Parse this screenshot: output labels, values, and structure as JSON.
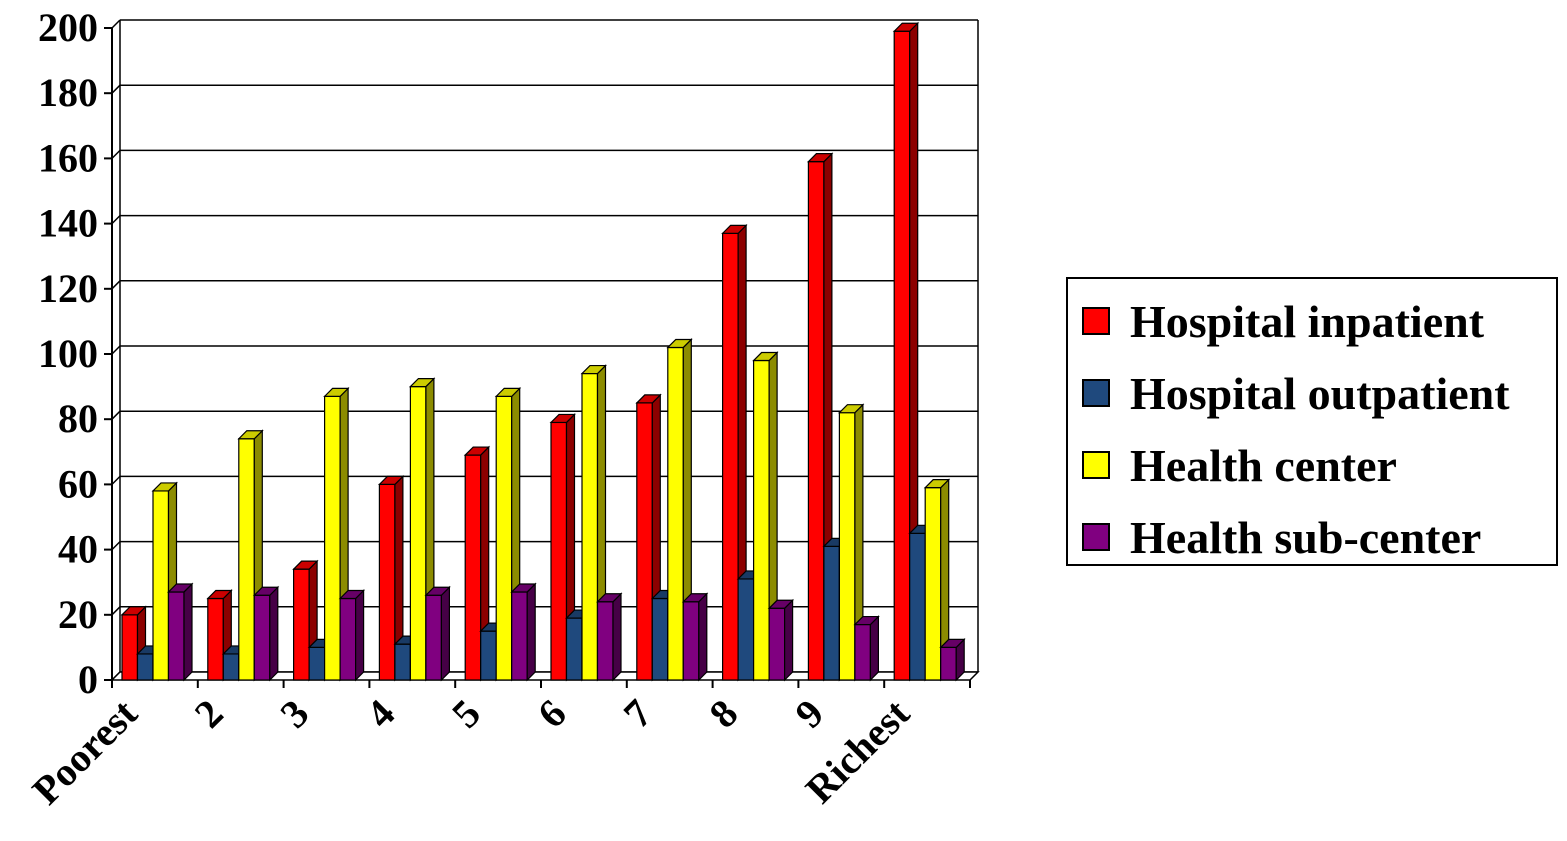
{
  "chart_data": {
    "type": "bar",
    "categories": [
      "Poorest",
      "2",
      "3",
      "4",
      "5",
      "6",
      "7",
      "8",
      "9",
      "Richest"
    ],
    "series": [
      {
        "name": "Hospital inpatient",
        "color": "#FF0000",
        "values": [
          20,
          25,
          34,
          60,
          69,
          79,
          85,
          137,
          159,
          199
        ]
      },
      {
        "name": "Hospital outpatient",
        "color": "#1F497D",
        "values": [
          8,
          8,
          10,
          11,
          15,
          19,
          25,
          31,
          41,
          45
        ]
      },
      {
        "name": "Health center",
        "color": "#FFFF00",
        "values": [
          58,
          74,
          87,
          90,
          87,
          94,
          102,
          98,
          82,
          59
        ]
      },
      {
        "name": "Health sub-center",
        "color": "#800080",
        "values": [
          27,
          26,
          25,
          26,
          27,
          24,
          24,
          22,
          17,
          10
        ]
      }
    ],
    "ylim": [
      0,
      200
    ],
    "yticks": [
      0,
      20,
      40,
      60,
      80,
      100,
      120,
      140,
      160,
      180,
      200
    ],
    "grid": true,
    "legend_position": "right"
  }
}
